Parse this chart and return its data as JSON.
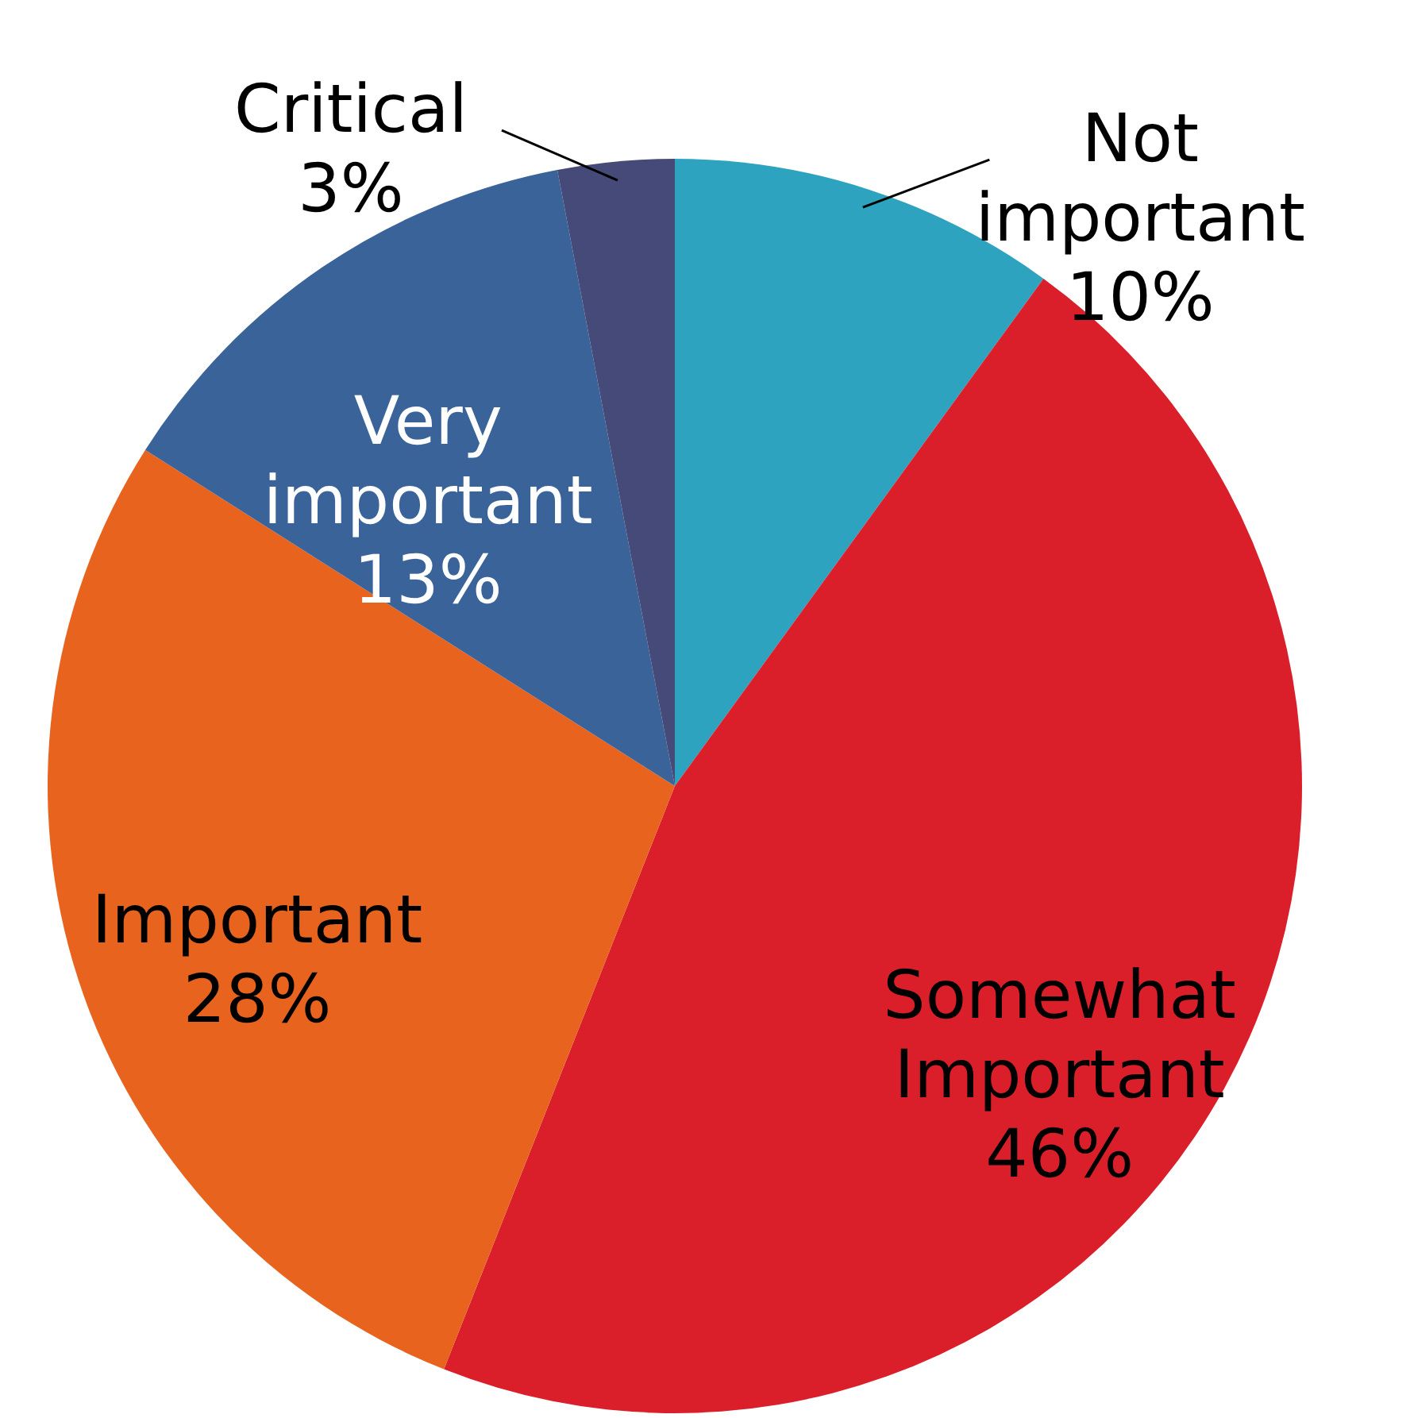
{
  "chart_data": {
    "type": "pie",
    "categories": [
      "Not important",
      "Somewhat Important",
      "Important",
      "Very important",
      "Critical"
    ],
    "values": [
      10,
      46,
      28,
      13,
      3
    ],
    "value_labels": [
      "10%",
      "46%",
      "28%",
      "13%",
      "3%"
    ],
    "colors": [
      "#2ea3c0",
      "#da1f2a",
      "#e8641e",
      "#3a6499",
      "#454a78"
    ],
    "legend": false
  }
}
